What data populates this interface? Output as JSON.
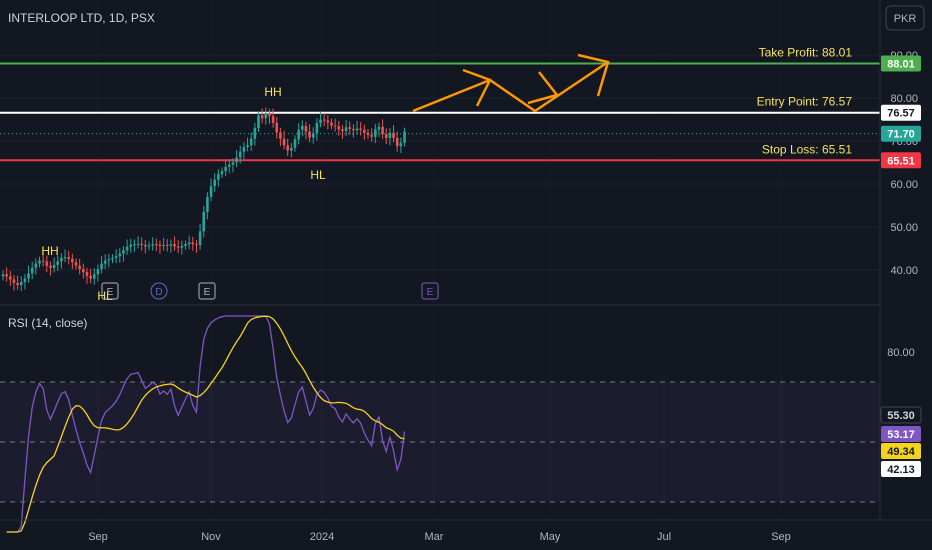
{
  "header": {
    "title": "INTERLOOP LTD, 1D, PSX",
    "currency_button": "PKR"
  },
  "colors": {
    "background": "#131722",
    "up": "#26a69a",
    "down": "#ef5350",
    "take_profit": "#4caf50",
    "entry": "#ffffff",
    "stop_loss": "#f23645",
    "arrow": "#ff9800",
    "annotation": "#f5e35b",
    "rsi_line": "#7e57c2",
    "rsi_ma": "#f5d21b"
  },
  "chart_data": [
    {
      "type": "candlestick",
      "title": "INTERLOOP LTD, 1D, PSX",
      "x_ticks": [
        "Sep",
        "Nov",
        "2024",
        "Mar",
        "May",
        "Jul",
        "Sep"
      ],
      "y_ticks": [
        40,
        50,
        60,
        70,
        80,
        90
      ],
      "ylim": [
        33,
        92
      ],
      "y_tick_labels": [
        "40.00",
        "50.00",
        "60.00",
        "70.00",
        "80.00",
        "90.00"
      ],
      "last_price": 71.7,
      "last_price_label": "71.70",
      "close_series": [
        39,
        38.5,
        37.8,
        37,
        36.5,
        37.2,
        38,
        39.2,
        40.5,
        41.5,
        42.2,
        42,
        41,
        40.5,
        41.2,
        42,
        42.8,
        43,
        42.6,
        41.8,
        41,
        40.2,
        39.5,
        38.6,
        38,
        39,
        40.2,
        41.5,
        42.2,
        42.5,
        42.8,
        43.2,
        43.8,
        44.6,
        45.4,
        45.9,
        46,
        46.1,
        45.8,
        45.5,
        45.7,
        46,
        45.9,
        45.6,
        45.8,
        45.7,
        46,
        45.5,
        45.2,
        45.6,
        46,
        46.4,
        46,
        45.8,
        49,
        53.5,
        57,
        59.5,
        61,
        62.3,
        63,
        64,
        64.5,
        65,
        66.2,
        67.5,
        68.6,
        69,
        70.5,
        73,
        76,
        75.3,
        76.5,
        75.8,
        74.2,
        72,
        70.5,
        69,
        67.8,
        68.4,
        70.4,
        72.6,
        73.5,
        72.2,
        70.8,
        71.8,
        74.2,
        75,
        74.8,
        74.3,
        73.6,
        73.4,
        72.7,
        72.3,
        73.2,
        72.8,
        72.5,
        72.9,
        72.6,
        71.9,
        71.4,
        71,
        72.7,
        73.3,
        71.6,
        70.7,
        71.9,
        70.7,
        68.8,
        69.6,
        72.2
      ],
      "levels": [
        {
          "name": "Take Profit",
          "label": "Take Profit: 88.01",
          "value": 88.01,
          "badge": "88.01"
        },
        {
          "name": "Entry Point",
          "label": "Entry Point: 76.57",
          "value": 76.57,
          "badge": "76.57"
        },
        {
          "name": "Stop Loss",
          "label": "Stop Loss: 65.51",
          "value": 65.51,
          "badge": "65.51"
        }
      ],
      "annotations": [
        "HH",
        "HH",
        "HL",
        "HL"
      ],
      "events": [
        "E",
        "D",
        "E",
        "E"
      ]
    },
    {
      "type": "line",
      "title": "RSI (14, close)",
      "series": [
        {
          "name": "RSI",
          "last": 53.17,
          "last_label": "53.17"
        },
        {
          "name": "MA",
          "last": 49.34,
          "last_label": "49.34"
        }
      ],
      "bands": {
        "upper": 70,
        "middle": 50,
        "lower": 30
      },
      "right_labels": [
        "80.00",
        "55.30",
        "53.17",
        "49.34",
        "42.13"
      ],
      "ylim": [
        10,
        95
      ]
    }
  ]
}
